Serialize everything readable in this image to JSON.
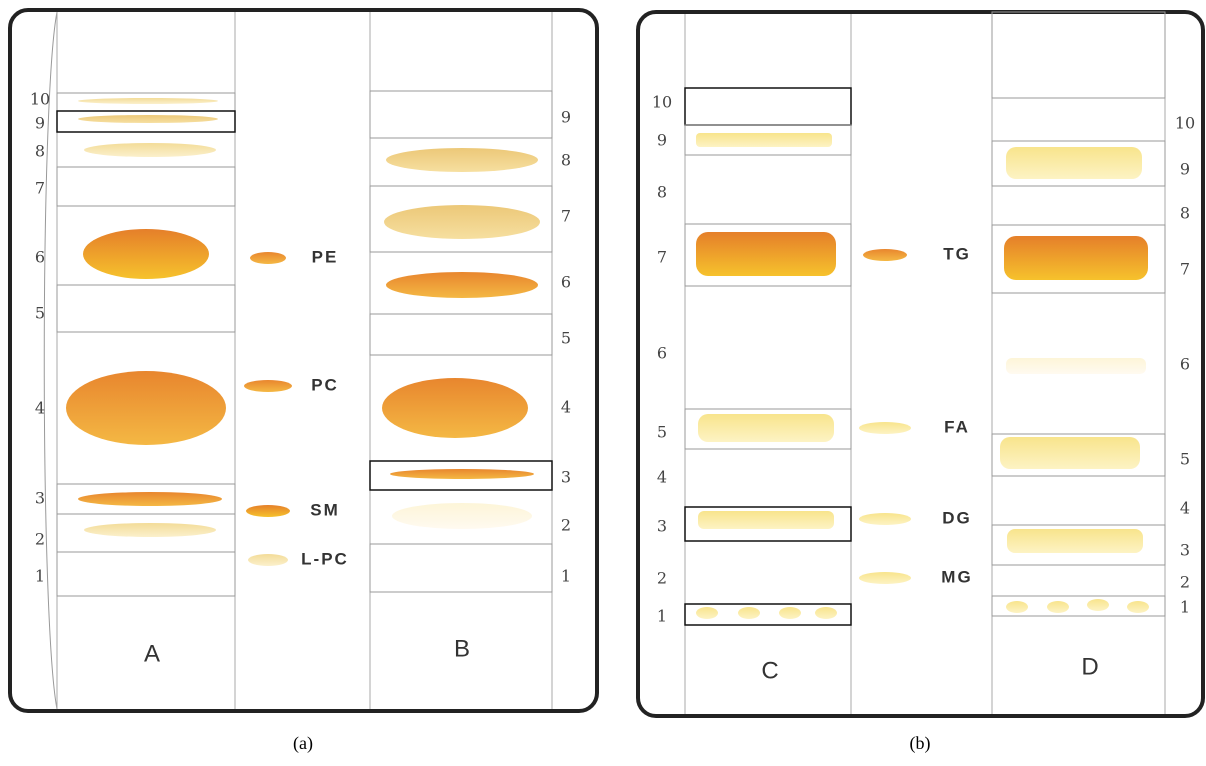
{
  "panels": [
    {
      "caption": "(a)",
      "lanes": [
        {
          "name": "A",
          "labels": [
            "10",
            "9",
            "8",
            "7",
            "6",
            "5",
            "4",
            "3",
            "2",
            "1"
          ]
        },
        {
          "name": "B",
          "labels": [
            "9",
            "8",
            "7",
            "6",
            "5",
            "4",
            "3",
            "2",
            "1"
          ]
        }
      ],
      "standards": [
        "PE",
        "PC",
        "SM",
        "L-PC"
      ]
    },
    {
      "caption": "(b)",
      "lanes": [
        {
          "name": "C",
          "labels": [
            "10",
            "9",
            "8",
            "7",
            "6",
            "5",
            "4",
            "3",
            "2",
            "1"
          ]
        },
        {
          "name": "D",
          "labels": [
            "10",
            "9",
            "8",
            "7",
            "6",
            "5",
            "4",
            "3",
            "2",
            "1"
          ]
        }
      ],
      "standards": [
        "TG",
        "FA",
        "DG",
        "MG"
      ]
    }
  ]
}
